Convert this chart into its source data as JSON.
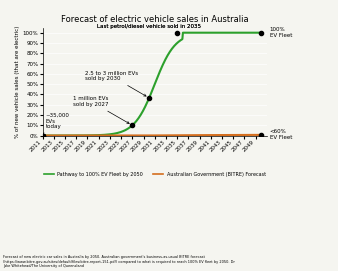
{
  "title": "Forecast of electric vehicle sales in Australia",
  "ylabel": "% of new vehicle sales (that are electric)",
  "xlim_start": 2011,
  "xlim_end": 2051,
  "ylim": [
    0,
    105
  ],
  "yticks": [
    0,
    10,
    20,
    30,
    40,
    50,
    60,
    70,
    80,
    90,
    100
  ],
  "ytick_labels": [
    "0%",
    "10%",
    "20%",
    "30%",
    "40%",
    "50%",
    "60%",
    "70%",
    "80%",
    "90%",
    "100%"
  ],
  "xticks": [
    2011,
    2013,
    2015,
    2017,
    2019,
    2021,
    2023,
    2025,
    2027,
    2029,
    2031,
    2033,
    2035,
    2037,
    2039,
    2041,
    2043,
    2045,
    2047,
    2049
  ],
  "green_color": "#2ca02c",
  "orange_color": "#d46e1e",
  "background_color": "#f5f5f0",
  "annotation_35000": "~35,000\nEVs\ntoday",
  "annotation_1m": "1 million EVs\nsold by 2027",
  "annotation_25m": "2.5 to 3 million EVs\nsold by 2030",
  "annotation_last": "Last petrol/diesel vehicle sold in 2035",
  "annotation_100": "100%\nEV Fleet",
  "annotation_60": "<60%\nEV Fleet",
  "legend_green": "Pathway to 100% EV Fleet by 2050",
  "legend_orange": "Australian Government (BITRE) Forecast",
  "footer": "Forecast of new electric car sales in Australia by 2050. Australian government's business-as-usual BITRE forecast\n(https://www.bitre.gov.au/sites/default/files/bitre-report-151.pdf) compared to what is required to reach 100% EV fleet by 2050. Dr\nJake Whitehead/The University of Queensland"
}
